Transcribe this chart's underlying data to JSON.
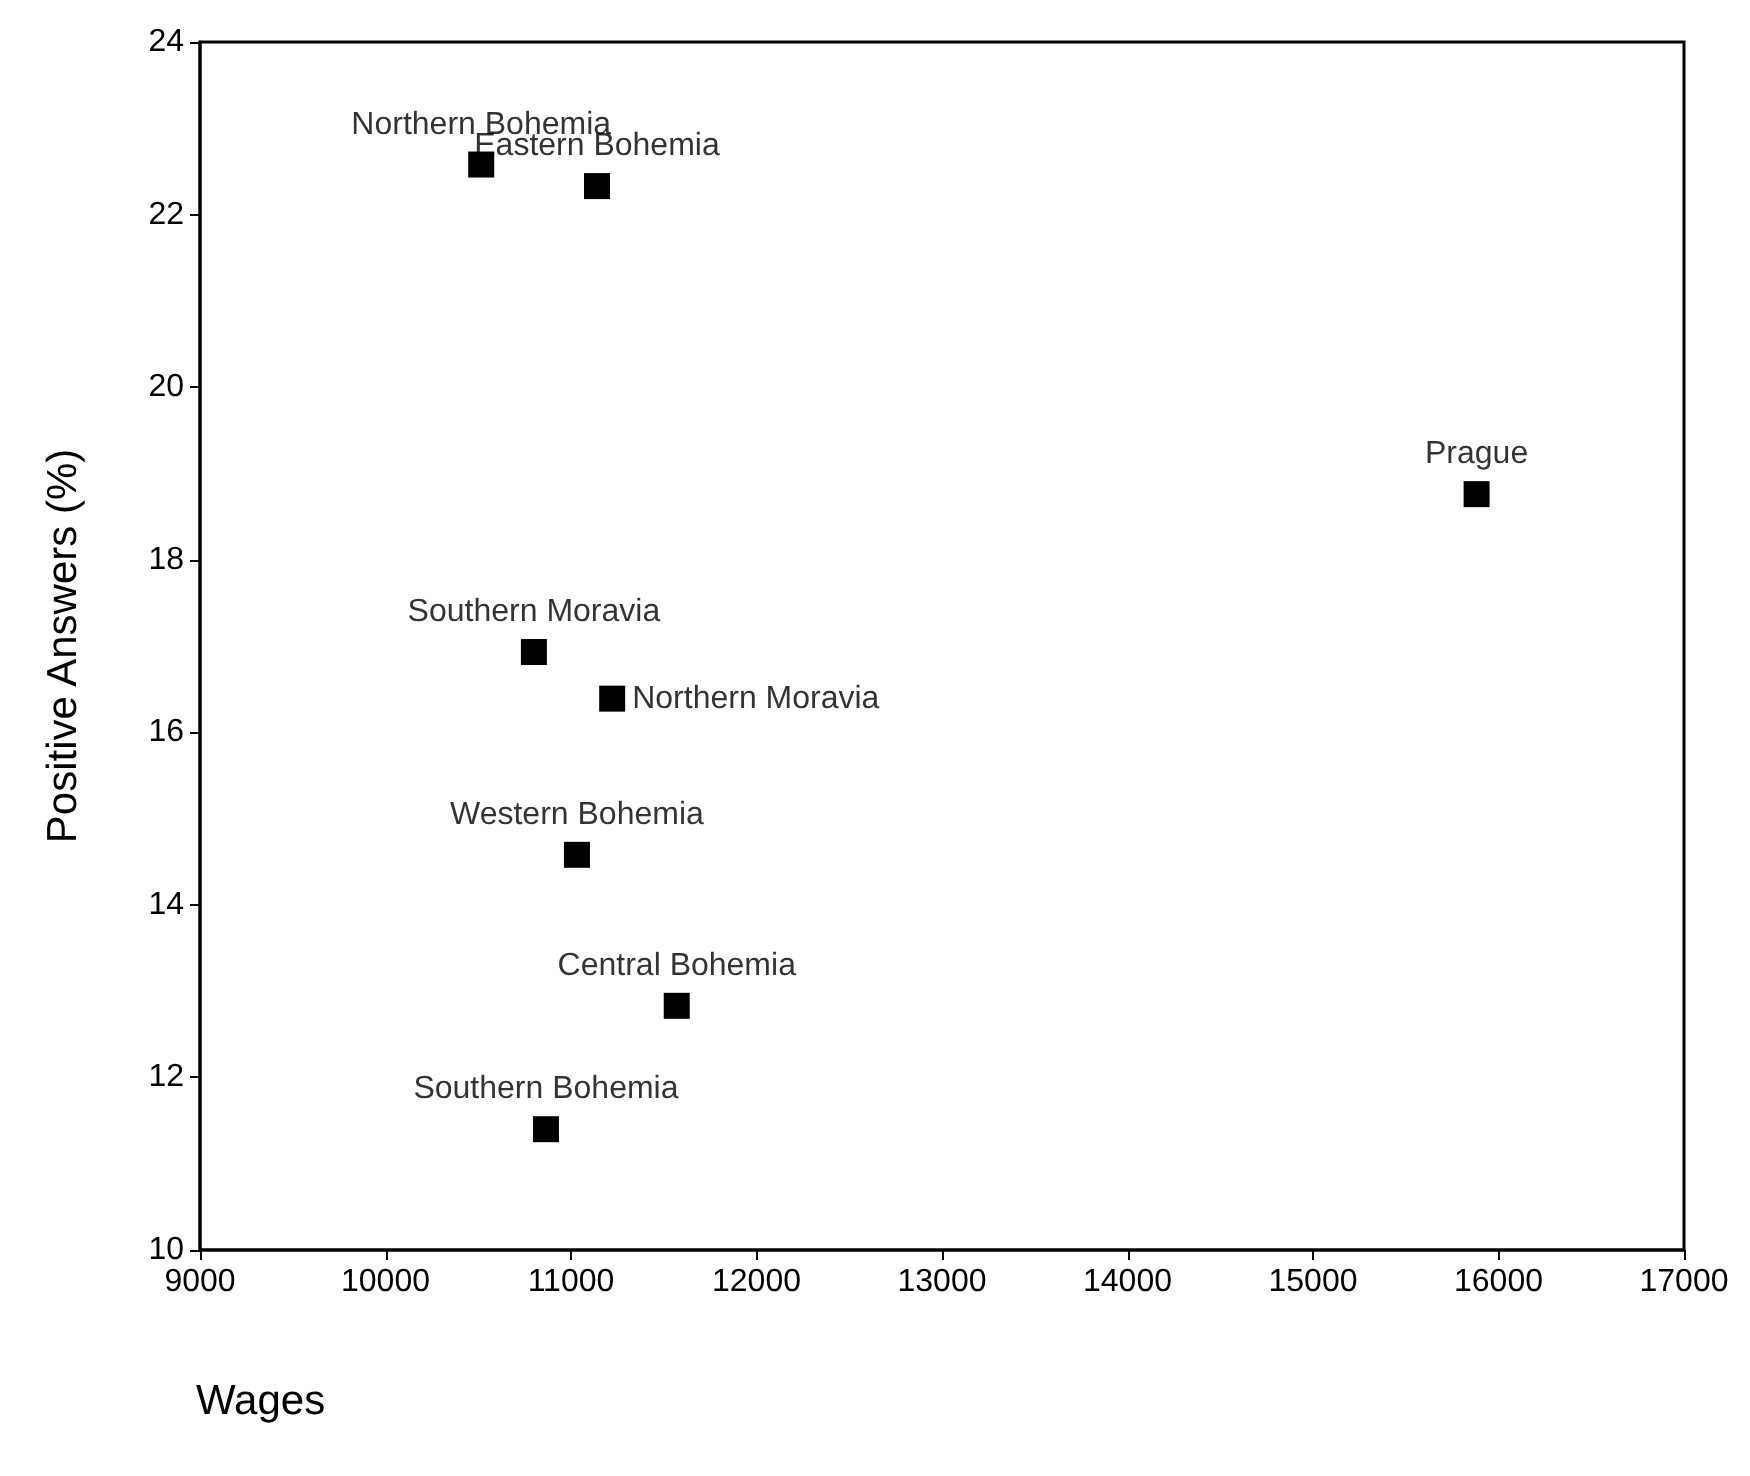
{
  "chart_data": {
    "type": "scatter",
    "xlabel": "Wages",
    "ylabel": "Positive Answers (%)",
    "x": [
      10516,
      11140,
      15882,
      10800,
      11222,
      11032,
      11570,
      10865
    ],
    "values": [
      22.58,
      22.33,
      18.76,
      16.93,
      16.39,
      14.58,
      12.83,
      11.4
    ],
    "color": "#000000",
    "marker": "square",
    "grid": false,
    "xlim": [
      9000,
      17000
    ],
    "xticks": [
      9000,
      10000,
      11000,
      12000,
      13000,
      14000,
      15000,
      16000,
      17000
    ],
    "ylim": [
      10,
      24
    ],
    "yticks": [
      10,
      12,
      14,
      16,
      18,
      20,
      22,
      24
    ],
    "annotations": [
      {
        "text": "Northern Bohemia",
        "x": 10516,
        "y": 22.58
      },
      {
        "text": "Eastern Bohemia",
        "x": 11140,
        "y": 22.33
      },
      {
        "text": "Prague",
        "x": 15882,
        "y": 18.76
      },
      {
        "text": "Southern Moravia",
        "x": 10800,
        "y": 16.93
      },
      {
        "text": "Northern Moravia",
        "x": 11222,
        "y": 16.39
      },
      {
        "text": "Western Bohemia",
        "x": 11032,
        "y": 14.58
      },
      {
        "text": "Central Bohemia",
        "x": 11570,
        "y": 12.83
      },
      {
        "text": "Southern Bohemia",
        "x": 10865,
        "y": 11.4
      }
    ]
  }
}
